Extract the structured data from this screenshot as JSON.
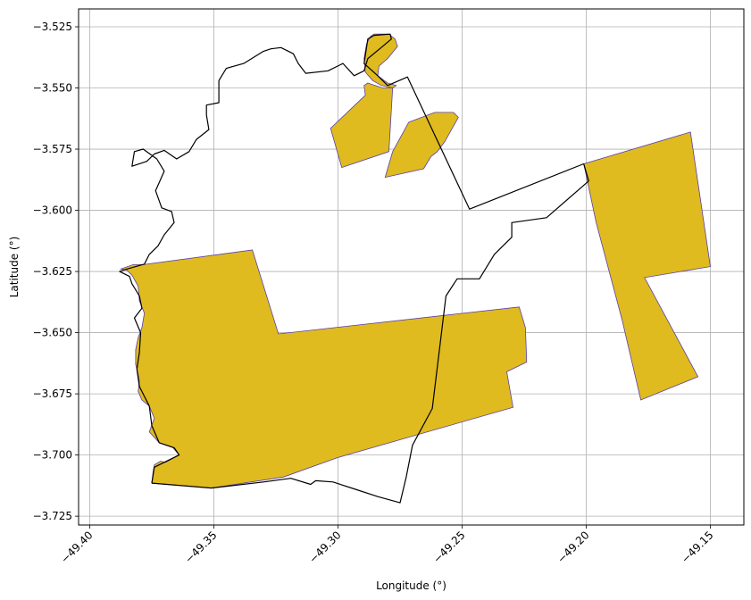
{
  "chart_data": {
    "type": "map",
    "xlabel": "Longitude (°)",
    "ylabel": "Latitude (°)",
    "xlim": [
      -49.4045,
      -49.1365
    ],
    "ylim": [
      -3.7286,
      -3.5177
    ],
    "grid": true,
    "colors": {
      "fill": "#dfbb20",
      "fill_edge": "#5a3fa8",
      "boundary": "#000000",
      "grid": "#b0b0b0"
    },
    "x_ticks": [
      {
        "value": -49.4,
        "label": "−49.40"
      },
      {
        "value": -49.35,
        "label": "−49.35"
      },
      {
        "value": -49.3,
        "label": "−49.30"
      },
      {
        "value": -49.25,
        "label": "−49.25"
      },
      {
        "value": -49.2,
        "label": "−49.20"
      },
      {
        "value": -49.15,
        "label": "−49.15"
      }
    ],
    "y_ticks": [
      {
        "value": -3.525,
        "label": "−3.525"
      },
      {
        "value": -3.55,
        "label": "−3.550"
      },
      {
        "value": -3.575,
        "label": "−3.575"
      },
      {
        "value": -3.6,
        "label": "−3.600"
      },
      {
        "value": -3.625,
        "label": "−3.625"
      },
      {
        "value": -3.65,
        "label": "−3.650"
      },
      {
        "value": -3.675,
        "label": "−3.675"
      },
      {
        "value": -3.7,
        "label": "−3.700"
      },
      {
        "value": -3.725,
        "label": "−3.725"
      }
    ],
    "filled_areas": [
      {
        "points": [
          [
            -49.2855,
            -3.528
          ],
          [
            -49.2795,
            -3.528
          ],
          [
            -49.277,
            -3.53
          ],
          [
            -49.276,
            -3.533
          ],
          [
            -49.28,
            -3.538
          ],
          [
            -49.2835,
            -3.541
          ],
          [
            -49.284,
            -3.545
          ],
          [
            -49.28,
            -3.548
          ],
          [
            -49.2765,
            -3.549
          ],
          [
            -49.278,
            -3.55
          ],
          [
            -49.2825,
            -3.549
          ],
          [
            -49.286,
            -3.547
          ],
          [
            -49.289,
            -3.5435
          ],
          [
            -49.2895,
            -3.538
          ],
          [
            -49.2885,
            -3.532
          ],
          [
            -49.287,
            -3.529
          ]
        ]
      },
      {
        "points": [
          [
            -49.288,
            -3.548
          ],
          [
            -49.282,
            -3.55
          ],
          [
            -49.2785,
            -3.55
          ],
          [
            -49.278,
            -3.55
          ],
          [
            -49.2795,
            -3.576
          ],
          [
            -49.2985,
            -3.5825
          ],
          [
            -49.303,
            -3.5665
          ],
          [
            -49.289,
            -3.553
          ],
          [
            -49.2895,
            -3.549
          ]
        ]
      },
      {
        "points": [
          [
            -49.2715,
            -3.564
          ],
          [
            -49.261,
            -3.56
          ],
          [
            -49.2535,
            -3.56
          ],
          [
            -49.2515,
            -3.562
          ],
          [
            -49.257,
            -3.572
          ],
          [
            -49.26,
            -3.576
          ],
          [
            -49.2625,
            -3.578
          ],
          [
            -49.2655,
            -3.583
          ],
          [
            -49.281,
            -3.5865
          ],
          [
            -49.278,
            -3.576
          ]
        ]
      },
      {
        "points": [
          [
            -49.201,
            -3.581
          ],
          [
            -49.158,
            -3.568
          ],
          [
            -49.15,
            -3.623
          ],
          [
            -49.1765,
            -3.6275
          ],
          [
            -49.155,
            -3.668
          ],
          [
            -49.178,
            -3.6775
          ],
          [
            -49.1855,
            -3.645
          ],
          [
            -49.196,
            -3.605
          ]
        ]
      },
      {
        "points": [
          [
            -49.3785,
            -3.6222
          ],
          [
            -49.3345,
            -3.6162
          ],
          [
            -49.324,
            -3.6505
          ],
          [
            -49.227,
            -3.6395
          ],
          [
            -49.2245,
            -3.648
          ],
          [
            -49.224,
            -3.662
          ],
          [
            -49.232,
            -3.666
          ],
          [
            -49.2295,
            -3.6805
          ],
          [
            -49.3,
            -3.701
          ],
          [
            -49.322,
            -3.709
          ],
          [
            -49.351,
            -3.7135
          ],
          [
            -49.375,
            -3.7115
          ],
          [
            -49.3745,
            -3.707
          ],
          [
            -49.374,
            -3.704
          ],
          [
            -49.3715,
            -3.7025
          ],
          [
            -49.3695,
            -3.703
          ],
          [
            -49.364,
            -3.7
          ],
          [
            -49.3665,
            -3.697
          ],
          [
            -49.372,
            -3.695
          ],
          [
            -49.376,
            -3.6905
          ],
          [
            -49.374,
            -3.685
          ],
          [
            -49.376,
            -3.68
          ],
          [
            -49.379,
            -3.6775
          ],
          [
            -49.3805,
            -3.674
          ],
          [
            -49.38,
            -3.67
          ],
          [
            -49.3805,
            -3.667
          ],
          [
            -49.3815,
            -3.663
          ],
          [
            -49.3815,
            -3.657
          ],
          [
            -49.3805,
            -3.652
          ],
          [
            -49.379,
            -3.648
          ],
          [
            -49.378,
            -3.642
          ],
          [
            -49.38,
            -3.637
          ],
          [
            -49.3805,
            -3.631
          ],
          [
            -49.383,
            -3.6265
          ],
          [
            -49.385,
            -3.6245
          ],
          [
            -49.3875,
            -3.624
          ],
          [
            -49.3825,
            -3.6222
          ]
        ]
      }
    ],
    "boundary": [
      [
        -49.375,
        -3.7115
      ],
      [
        -49.351,
        -3.7135
      ],
      [
        -49.33,
        -3.711
      ],
      [
        -49.319,
        -3.7095
      ],
      [
        -49.311,
        -3.712
      ],
      [
        -49.309,
        -3.7105
      ],
      [
        -49.302,
        -3.711
      ],
      [
        -49.293,
        -3.714
      ],
      [
        -49.284,
        -3.717
      ],
      [
        -49.275,
        -3.7195
      ],
      [
        -49.2725,
        -3.709
      ],
      [
        -49.27,
        -3.696
      ],
      [
        -49.262,
        -3.681
      ],
      [
        -49.2565,
        -3.635
      ],
      [
        -49.252,
        -3.628
      ],
      [
        -49.243,
        -3.628
      ],
      [
        -49.237,
        -3.618
      ],
      [
        -49.233,
        -3.614
      ],
      [
        -49.23,
        -3.611
      ],
      [
        -49.23,
        -3.605
      ],
      [
        -49.216,
        -3.603
      ],
      [
        -49.199,
        -3.588
      ],
      [
        -49.201,
        -3.581
      ],
      [
        -49.247,
        -3.5995
      ],
      [
        -49.272,
        -3.5455
      ],
      [
        -49.28,
        -3.549
      ],
      [
        -49.284,
        -3.545
      ],
      [
        -49.2895,
        -3.54
      ],
      [
        -49.288,
        -3.53
      ],
      [
        -49.2855,
        -3.5285
      ],
      [
        -49.279,
        -3.528
      ],
      [
        -49.2785,
        -3.53
      ],
      [
        -49.282,
        -3.533
      ],
      [
        -49.288,
        -3.538
      ],
      [
        -49.2895,
        -3.543
      ],
      [
        -49.2935,
        -3.545
      ],
      [
        -49.298,
        -3.54
      ],
      [
        -49.304,
        -3.543
      ],
      [
        -49.313,
        -3.544
      ],
      [
        -49.316,
        -3.54
      ],
      [
        -49.318,
        -3.536
      ],
      [
        -49.323,
        -3.5335
      ],
      [
        -49.327,
        -3.534
      ],
      [
        -49.33,
        -3.535
      ],
      [
        -49.338,
        -3.54
      ],
      [
        -49.345,
        -3.542
      ],
      [
        -49.348,
        -3.547
      ],
      [
        -49.348,
        -3.551
      ],
      [
        -49.348,
        -3.556
      ],
      [
        -49.353,
        -3.557
      ],
      [
        -49.353,
        -3.561
      ],
      [
        -49.352,
        -3.567
      ],
      [
        -49.357,
        -3.571
      ],
      [
        -49.36,
        -3.576
      ],
      [
        -49.365,
        -3.579
      ],
      [
        -49.37,
        -3.5755
      ],
      [
        -49.374,
        -3.577
      ],
      [
        -49.377,
        -3.58
      ],
      [
        -49.383,
        -3.582
      ],
      [
        -49.382,
        -3.576
      ],
      [
        -49.3785,
        -3.575
      ],
      [
        -49.373,
        -3.579
      ],
      [
        -49.37,
        -3.584
      ],
      [
        -49.3735,
        -3.592
      ],
      [
        -49.371,
        -3.599
      ],
      [
        -49.367,
        -3.6005
      ],
      [
        -49.366,
        -3.605
      ],
      [
        -49.37,
        -3.61
      ],
      [
        -49.3725,
        -3.6145
      ],
      [
        -49.376,
        -3.618
      ],
      [
        -49.378,
        -3.622
      ],
      [
        -49.385,
        -3.624
      ],
      [
        -49.388,
        -3.625
      ],
      [
        -49.384,
        -3.627
      ],
      [
        -49.383,
        -3.63
      ],
      [
        -49.38,
        -3.635
      ],
      [
        -49.379,
        -3.64
      ],
      [
        -49.382,
        -3.644
      ],
      [
        -49.3795,
        -3.65
      ],
      [
        -49.38,
        -3.658
      ],
      [
        -49.381,
        -3.665
      ],
      [
        -49.38,
        -3.672
      ],
      [
        -49.376,
        -3.68
      ],
      [
        -49.375,
        -3.688
      ],
      [
        -49.372,
        -3.695
      ],
      [
        -49.366,
        -3.697
      ],
      [
        -49.364,
        -3.7
      ],
      [
        -49.37,
        -3.703
      ],
      [
        -49.374,
        -3.705
      ],
      [
        -49.375,
        -3.7115
      ]
    ]
  }
}
